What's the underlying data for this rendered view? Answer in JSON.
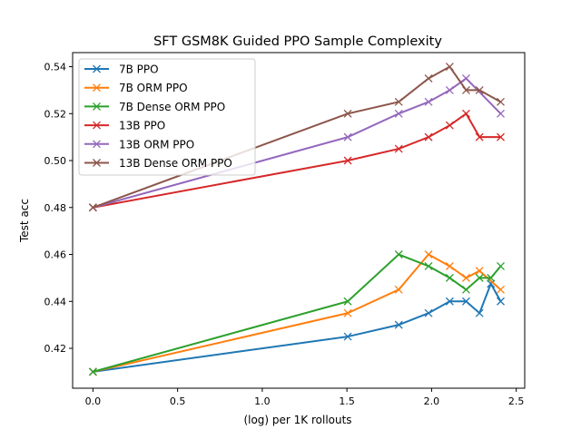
{
  "chart_data": {
    "type": "line",
    "title": "SFT GSM8K Guided PPO Sample Complexity",
    "xlabel": "(log) per 1K rollouts",
    "ylabel": "Test acc",
    "xlim": [
      -0.12,
      2.55
    ],
    "ylim": [
      0.403,
      0.546
    ],
    "xticks": [
      0.0,
      0.5,
      1.0,
      1.5,
      2.0,
      2.5
    ],
    "xtick_labels": [
      "0.0",
      "0.5",
      "1.0",
      "1.5",
      "2.0",
      "2.5"
    ],
    "yticks": [
      0.42,
      0.44,
      0.46,
      0.48,
      0.5,
      0.52,
      0.54
    ],
    "ytick_labels": [
      "0.42",
      "0.44",
      "0.46",
      "0.48",
      "0.50",
      "0.52",
      "0.54"
    ],
    "grid": false,
    "legend_position": "top-left",
    "marker": "x",
    "series": [
      {
        "name": "7B PPO",
        "color": "#1f77b4",
        "x": [
          0,
          1.505,
          1.806,
          1.982,
          2.107,
          2.204,
          2.283,
          2.35,
          2.408
        ],
        "y": [
          0.41,
          0.425,
          0.43,
          0.435,
          0.44,
          0.44,
          0.435,
          0.4475,
          0.44
        ]
      },
      {
        "name": "7B ORM PPO",
        "color": "#ff7f0e",
        "x": [
          0,
          1.505,
          1.806,
          1.982,
          2.107,
          2.204,
          2.283,
          2.408
        ],
        "y": [
          0.41,
          0.435,
          0.445,
          0.46,
          0.455,
          0.45,
          0.453,
          0.445
        ]
      },
      {
        "name": "7B Dense ORM PPO",
        "color": "#2ca02c",
        "x": [
          0,
          1.505,
          1.806,
          1.982,
          2.107,
          2.204,
          2.283,
          2.35,
          2.408
        ],
        "y": [
          0.41,
          0.44,
          0.46,
          0.455,
          0.45,
          0.445,
          0.45,
          0.45,
          0.455
        ]
      },
      {
        "name": "13B PPO",
        "color": "#d62728",
        "x": [
          0,
          1.505,
          1.806,
          1.982,
          2.107,
          2.204,
          2.283,
          2.408
        ],
        "y": [
          0.48,
          0.5,
          0.505,
          0.51,
          0.515,
          0.52,
          0.51,
          0.51
        ]
      },
      {
        "name": "13B ORM PPO",
        "color": "#9467bd",
        "x": [
          0,
          1.505,
          1.806,
          1.982,
          2.107,
          2.204,
          2.408
        ],
        "y": [
          0.48,
          0.51,
          0.52,
          0.525,
          0.53,
          0.535,
          0.52
        ]
      },
      {
        "name": "13B Dense ORM PPO",
        "color": "#8c564b",
        "x": [
          0,
          1.505,
          1.806,
          1.982,
          2.107,
          2.204,
          2.283,
          2.408
        ],
        "y": [
          0.48,
          0.52,
          0.525,
          0.535,
          0.54,
          0.53,
          0.53,
          0.525
        ]
      }
    ]
  }
}
